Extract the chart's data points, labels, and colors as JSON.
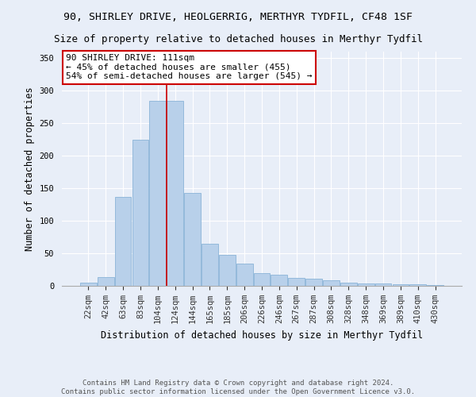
{
  "title_line1": "90, SHIRLEY DRIVE, HEOLGERRIG, MERTHYR TYDFIL, CF48 1SF",
  "title_line2": "Size of property relative to detached houses in Merthyr Tydfil",
  "xlabel": "Distribution of detached houses by size in Merthyr Tydfil",
  "ylabel": "Number of detached properties",
  "bar_labels": [
    "22sqm",
    "42sqm",
    "63sqm",
    "83sqm",
    "104sqm",
    "124sqm",
    "144sqm",
    "165sqm",
    "185sqm",
    "206sqm",
    "226sqm",
    "246sqm",
    "267sqm",
    "287sqm",
    "308sqm",
    "328sqm",
    "348sqm",
    "369sqm",
    "389sqm",
    "410sqm",
    "430sqm"
  ],
  "bar_values": [
    5,
    14,
    137,
    224,
    284,
    284,
    143,
    65,
    47,
    34,
    20,
    17,
    12,
    11,
    8,
    5,
    4,
    4,
    2,
    2,
    1
  ],
  "bar_color": "#b8d0ea",
  "bar_edgecolor": "#8ab4d8",
  "vline_x_index": 4,
  "vline_color": "#cc0000",
  "ylim": [
    0,
    360
  ],
  "yticks": [
    0,
    50,
    100,
    150,
    200,
    250,
    300,
    350
  ],
  "annotation_text": "90 SHIRLEY DRIVE: 111sqm\n← 45% of detached houses are smaller (455)\n54% of semi-detached houses are larger (545) →",
  "annotation_box_facecolor": "#ffffff",
  "annotation_box_edgecolor": "#cc0000",
  "footer_text": "Contains HM Land Registry data © Crown copyright and database right 2024.\nContains public sector information licensed under the Open Government Licence v3.0.",
  "bg_color": "#e8eef8",
  "plot_bg_color": "#e8eef8",
  "grid_color": "#ffffff",
  "title_fontsize": 9.5,
  "subtitle_fontsize": 9,
  "axis_label_fontsize": 8.5,
  "tick_fontsize": 7.5,
  "annotation_fontsize": 8,
  "footer_fontsize": 6.5
}
